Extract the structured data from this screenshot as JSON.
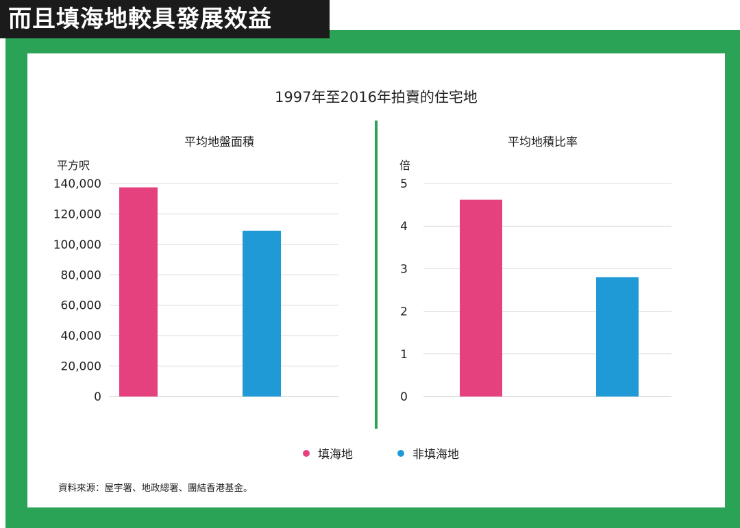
{
  "headline": "而且填海地較具發展效益",
  "colors": {
    "frame": "#2aa357",
    "reclaimed": "#e6417f",
    "non_reclaimed": "#1f9ad6",
    "grid": "#d9d9d9"
  },
  "chart_title": "1997年至2016年拍賣的住宅地",
  "legend": [
    {
      "label": "填海地",
      "color": "#e6417f"
    },
    {
      "label": "非填海地",
      "color": "#1f9ad6"
    }
  ],
  "source": "資料來源：屋宇署、地政總署、團結香港基金。",
  "chart_data": [
    {
      "type": "bar",
      "title": "平均地盤面積",
      "ylabel": "平方呎",
      "categories": [
        "填海地",
        "非填海地"
      ],
      "values": [
        137500,
        109000
      ],
      "colors": [
        "#e6417f",
        "#1f9ad6"
      ],
      "ylim": [
        0,
        140000
      ],
      "yticks": [
        0,
        20000,
        40000,
        60000,
        80000,
        100000,
        120000,
        140000
      ],
      "ytick_labels": [
        "0",
        "20,000",
        "40,000",
        "60,000",
        "80,000",
        "100,000",
        "120,000",
        "140,000"
      ],
      "grid": true
    },
    {
      "type": "bar",
      "title": "平均地積比率",
      "ylabel": "倍",
      "categories": [
        "填海地",
        "非填海地"
      ],
      "values": [
        4.62,
        2.8
      ],
      "colors": [
        "#e6417f",
        "#1f9ad6"
      ],
      "ylim": [
        0,
        5
      ],
      "yticks": [
        0,
        1,
        2,
        3,
        4,
        5
      ],
      "ytick_labels": [
        "0",
        "1",
        "2",
        "3",
        "4",
        "5"
      ],
      "grid": true
    }
  ]
}
